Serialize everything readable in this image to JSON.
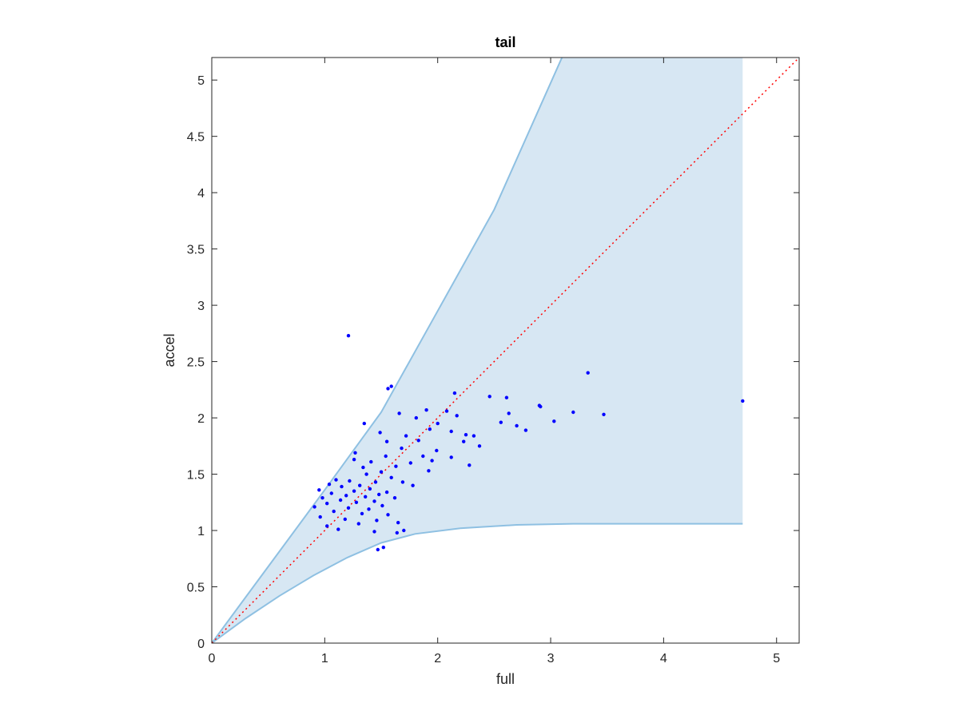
{
  "chart_data": {
    "type": "scatter",
    "title": "tail",
    "xlabel": "full",
    "ylabel": "accel",
    "xlim": [
      0,
      5.2
    ],
    "ylim": [
      0,
      5.2
    ],
    "xticks": [
      0,
      1,
      2,
      3,
      4,
      5
    ],
    "yticks": [
      0,
      0.5,
      1,
      1.5,
      2,
      2.5,
      3,
      3.5,
      4,
      4.5,
      5
    ],
    "xtick_labels": [
      "0",
      "1",
      "2",
      "3",
      "4",
      "5"
    ],
    "ytick_labels": [
      "0",
      "0.5",
      "1",
      "1.5",
      "2",
      "2.5",
      "3",
      "3.5",
      "4",
      "4.5",
      "5"
    ],
    "grid": false,
    "colors": {
      "points": "#0000ff",
      "band_fill": "#d7e7f3",
      "band_edge": "#8ec0e2",
      "identity_line": "#ff0000"
    },
    "identity_line": {
      "style": "dotted",
      "x": [
        0,
        5.2
      ],
      "y": [
        0,
        5.2
      ]
    },
    "band": {
      "upper": [
        [
          0,
          0
        ],
        [
          0.5,
          0.68
        ],
        [
          1,
          1.36
        ],
        [
          1.5,
          2.05
        ],
        [
          2,
          2.95
        ],
        [
          2.5,
          3.85
        ],
        [
          3.1,
          5.2
        ],
        [
          4.7,
          5.2
        ]
      ],
      "lower": [
        [
          0,
          0
        ],
        [
          0.3,
          0.22
        ],
        [
          0.6,
          0.42
        ],
        [
          0.9,
          0.6
        ],
        [
          1.2,
          0.76
        ],
        [
          1.5,
          0.89
        ],
        [
          1.8,
          0.97
        ],
        [
          2.2,
          1.02
        ],
        [
          2.7,
          1.05
        ],
        [
          3.2,
          1.06
        ],
        [
          4.7,
          1.06
        ]
      ]
    },
    "series": [
      {
        "points": [
          [
            1.21,
            2.73
          ],
          [
            3.33,
            2.4
          ],
          [
            4.7,
            2.15
          ],
          [
            1.56,
            2.26
          ],
          [
            1.59,
            2.28
          ],
          [
            2.15,
            2.22
          ],
          [
            2.46,
            2.19
          ],
          [
            2.61,
            2.18
          ],
          [
            2.9,
            2.11
          ],
          [
            2.91,
            2.1
          ],
          [
            1.9,
            2.07
          ],
          [
            2.08,
            2.06
          ],
          [
            1.66,
            2.04
          ],
          [
            3.2,
            2.05
          ],
          [
            2.63,
            2.04
          ],
          [
            3.47,
            2.03
          ],
          [
            1.81,
            2.0
          ],
          [
            2.17,
            2.02
          ],
          [
            3.03,
            1.97
          ],
          [
            2.56,
            1.96
          ],
          [
            2.0,
            1.95
          ],
          [
            1.35,
            1.95
          ],
          [
            2.7,
            1.93
          ],
          [
            2.78,
            1.89
          ],
          [
            1.93,
            1.9
          ],
          [
            2.12,
            1.88
          ],
          [
            2.25,
            1.85
          ],
          [
            1.49,
            1.87
          ],
          [
            2.32,
            1.84
          ],
          [
            1.72,
            1.84
          ],
          [
            1.83,
            1.8
          ],
          [
            2.23,
            1.79
          ],
          [
            1.55,
            1.79
          ],
          [
            2.37,
            1.75
          ],
          [
            1.68,
            1.73
          ],
          [
            1.99,
            1.71
          ],
          [
            1.27,
            1.69
          ],
          [
            1.87,
            1.66
          ],
          [
            2.12,
            1.65
          ],
          [
            1.54,
            1.66
          ],
          [
            1.26,
            1.63
          ],
          [
            1.95,
            1.62
          ],
          [
            1.41,
            1.61
          ],
          [
            2.28,
            1.58
          ],
          [
            1.76,
            1.6
          ],
          [
            1.63,
            1.57
          ],
          [
            1.34,
            1.56
          ],
          [
            1.92,
            1.53
          ],
          [
            1.5,
            1.52
          ],
          [
            1.37,
            1.5
          ],
          [
            1.59,
            1.47
          ],
          [
            1.1,
            1.45
          ],
          [
            1.22,
            1.44
          ],
          [
            1.45,
            1.43
          ],
          [
            1.69,
            1.43
          ],
          [
            1.04,
            1.41
          ],
          [
            1.31,
            1.4
          ],
          [
            1.78,
            1.4
          ],
          [
            1.15,
            1.39
          ],
          [
            1.4,
            1.37
          ],
          [
            0.95,
            1.36
          ],
          [
            1.26,
            1.35
          ],
          [
            1.55,
            1.34
          ],
          [
            1.06,
            1.33
          ],
          [
            1.48,
            1.32
          ],
          [
            1.19,
            1.31
          ],
          [
            1.36,
            1.3
          ],
          [
            0.98,
            1.29
          ],
          [
            1.62,
            1.29
          ],
          [
            1.14,
            1.27
          ],
          [
            1.44,
            1.26
          ],
          [
            1.28,
            1.25
          ],
          [
            1.02,
            1.24
          ],
          [
            1.51,
            1.22
          ],
          [
            0.91,
            1.21
          ],
          [
            1.21,
            1.2
          ],
          [
            1.39,
            1.19
          ],
          [
            1.08,
            1.17
          ],
          [
            1.33,
            1.15
          ],
          [
            1.56,
            1.14
          ],
          [
            0.96,
            1.12
          ],
          [
            1.18,
            1.1
          ],
          [
            1.46,
            1.09
          ],
          [
            1.02,
            1.04
          ],
          [
            1.3,
            1.06
          ],
          [
            1.65,
            1.07
          ],
          [
            1.7,
            1.0
          ],
          [
            1.12,
            1.01
          ],
          [
            1.44,
            0.99
          ],
          [
            1.52,
            0.85
          ],
          [
            1.47,
            0.83
          ],
          [
            1.64,
            0.98
          ]
        ]
      }
    ]
  }
}
